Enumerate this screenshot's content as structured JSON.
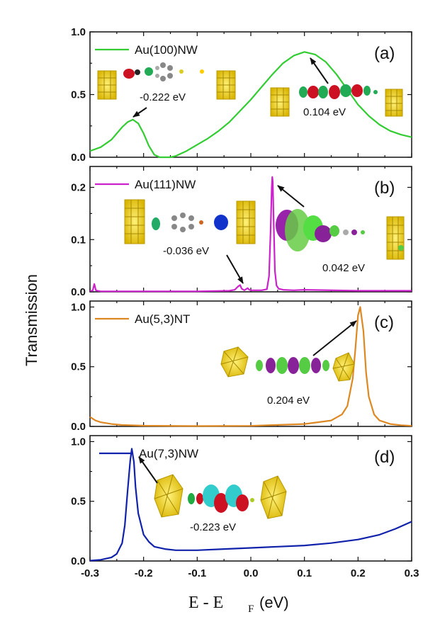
{
  "figure": {
    "ylabel": "Transmission",
    "xlabel_main": "E - E",
    "xlabel_sub": "F",
    "xlabel_unit": "(eV)"
  },
  "chart_data": [
    {
      "type": "line",
      "panel": "(a)",
      "legend": "Au(100)NW",
      "color": "#33cc33",
      "xlim": [
        -0.3,
        0.3
      ],
      "ylim": [
        0.0,
        1.0
      ],
      "yticks": [
        "0.0",
        "0.5",
        "1.0"
      ],
      "x": [
        -0.3,
        -0.28,
        -0.26,
        -0.24,
        -0.23,
        -0.22,
        -0.21,
        -0.2,
        -0.19,
        -0.18,
        -0.17,
        -0.16,
        -0.15,
        -0.14,
        -0.12,
        -0.1,
        -0.08,
        -0.06,
        -0.04,
        -0.02,
        0.0,
        0.02,
        0.04,
        0.06,
        0.08,
        0.1,
        0.12,
        0.14,
        0.16,
        0.18,
        0.2,
        0.22,
        0.24,
        0.26,
        0.28,
        0.3
      ],
      "y": [
        0.05,
        0.08,
        0.14,
        0.24,
        0.28,
        0.3,
        0.27,
        0.19,
        0.09,
        0.02,
        0.0,
        0.0,
        0.0,
        0.01,
        0.05,
        0.1,
        0.15,
        0.21,
        0.28,
        0.37,
        0.46,
        0.56,
        0.66,
        0.75,
        0.81,
        0.84,
        0.82,
        0.76,
        0.66,
        0.54,
        0.42,
        0.33,
        0.26,
        0.21,
        0.18,
        0.16
      ],
      "annotations": [
        {
          "text": "-0.222 eV",
          "x": -0.222
        },
        {
          "text": "0.104 eV",
          "x": 0.104
        }
      ]
    },
    {
      "type": "line",
      "panel": "(b)",
      "legend": "Au(111)NW",
      "color": "#cc22cc",
      "xlim": [
        -0.3,
        0.3
      ],
      "ylim": [
        0.0,
        0.24
      ],
      "yticks": [
        "0.0",
        "0.1",
        "0.2"
      ],
      "x": [
        -0.3,
        -0.295,
        -0.292,
        -0.289,
        -0.286,
        -0.28,
        -0.2,
        -0.1,
        -0.04,
        -0.03,
        -0.023,
        -0.02,
        -0.017,
        -0.012,
        -0.006,
        -0.003,
        0.0,
        0.02,
        0.03,
        0.034,
        0.037,
        0.039,
        0.04,
        0.041,
        0.043,
        0.045,
        0.048,
        0.052,
        0.06,
        0.08,
        0.1,
        0.2,
        0.3
      ],
      "y": [
        0.002,
        0.002,
        0.015,
        0.003,
        0.002,
        0.001,
        0.001,
        0.001,
        0.002,
        0.004,
        0.011,
        0.013,
        0.006,
        0.003,
        0.007,
        0.004,
        0.003,
        0.003,
        0.005,
        0.03,
        0.12,
        0.2,
        0.22,
        0.21,
        0.12,
        0.04,
        0.012,
        0.006,
        0.004,
        0.003,
        0.004,
        0.002,
        0.002
      ],
      "annotations": [
        {
          "text": "-0.036 eV",
          "x": -0.036
        },
        {
          "text": "0.042 eV",
          "x": 0.042
        }
      ]
    },
    {
      "type": "line",
      "panel": "(c)",
      "legend": "Au(5,3)NT",
      "color": "#dd8822",
      "xlim": [
        -0.3,
        0.3
      ],
      "ylim": [
        0.0,
        1.05
      ],
      "yticks": [
        "0.0",
        "0.5",
        "1.0"
      ],
      "x": [
        -0.3,
        -0.29,
        -0.28,
        -0.26,
        -0.24,
        -0.2,
        -0.1,
        0.0,
        0.1,
        0.15,
        0.17,
        0.18,
        0.19,
        0.195,
        0.2,
        0.204,
        0.21,
        0.215,
        0.22,
        0.23,
        0.24,
        0.26,
        0.28,
        0.3
      ],
      "y": [
        0.08,
        0.05,
        0.035,
        0.02,
        0.012,
        0.006,
        0.003,
        0.005,
        0.02,
        0.05,
        0.1,
        0.17,
        0.4,
        0.65,
        0.93,
        1.0,
        0.8,
        0.45,
        0.25,
        0.1,
        0.05,
        0.02,
        0.01,
        0.005
      ],
      "annotations": [
        {
          "text": "0.204 eV",
          "x": 0.204
        }
      ]
    },
    {
      "type": "line",
      "panel": "(d)",
      "legend": "Au(7,3)NW",
      "color": "#1122aa",
      "xlim": [
        -0.3,
        0.3
      ],
      "ylim": [
        0.0,
        1.05
      ],
      "yticks": [
        "0.0",
        "0.5",
        "1.0"
      ],
      "x": [
        -0.3,
        -0.28,
        -0.26,
        -0.25,
        -0.24,
        -0.235,
        -0.23,
        -0.225,
        -0.222,
        -0.218,
        -0.215,
        -0.21,
        -0.2,
        -0.19,
        -0.18,
        -0.16,
        -0.14,
        -0.1,
        -0.05,
        0.0,
        0.05,
        0.1,
        0.15,
        0.2,
        0.24,
        0.27,
        0.3
      ],
      "y": [
        0.003,
        0.01,
        0.03,
        0.06,
        0.15,
        0.3,
        0.58,
        0.84,
        0.94,
        0.83,
        0.62,
        0.4,
        0.22,
        0.16,
        0.12,
        0.1,
        0.09,
        0.09,
        0.1,
        0.11,
        0.12,
        0.13,
        0.15,
        0.18,
        0.22,
        0.27,
        0.33
      ],
      "annotations": [
        {
          "text": "-0.223 eV",
          "x": -0.223
        }
      ]
    }
  ],
  "xticks": [
    "-0.3",
    "-0.2",
    "-0.1",
    "0.0",
    "0.1",
    "0.2",
    "0.3"
  ]
}
